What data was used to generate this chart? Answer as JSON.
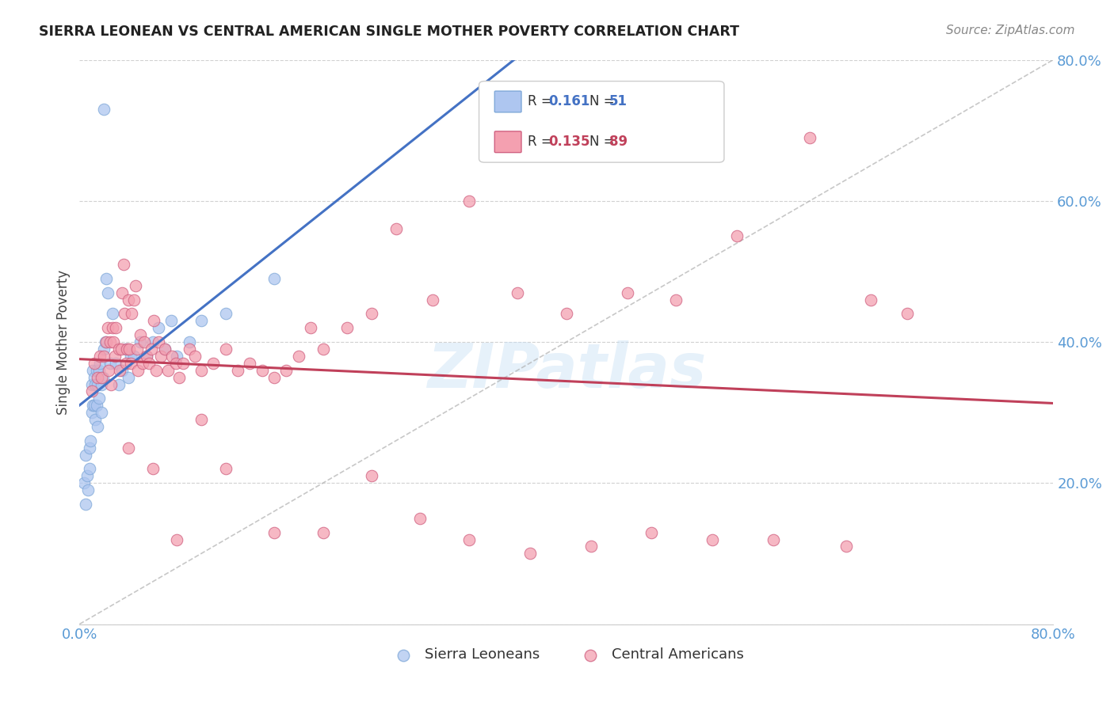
{
  "title": "SIERRA LEONEAN VS CENTRAL AMERICAN SINGLE MOTHER POVERTY CORRELATION CHART",
  "source": "Source: ZipAtlas.com",
  "ylabel": "Single Mother Poverty",
  "xlim": [
    0.0,
    0.8
  ],
  "ylim": [
    0.0,
    0.8
  ],
  "ytick_positions": [
    0.0,
    0.2,
    0.4,
    0.6,
    0.8
  ],
  "ytick_labels": [
    "",
    "20.0%",
    "40.0%",
    "60.0%",
    "80.0%"
  ],
  "xtick_positions": [
    0.0,
    0.1,
    0.2,
    0.3,
    0.4,
    0.5,
    0.6,
    0.7,
    0.8
  ],
  "xtick_labels": [
    "0.0%",
    "",
    "",
    "",
    "",
    "",
    "",
    "",
    "80.0%"
  ],
  "watermark": "ZIPatlas",
  "sierra_R": 0.161,
  "sierra_N": 51,
  "central_R": 0.135,
  "central_N": 89,
  "sierra_x": [
    0.004,
    0.005,
    0.005,
    0.006,
    0.007,
    0.008,
    0.008,
    0.009,
    0.01,
    0.01,
    0.011,
    0.011,
    0.012,
    0.012,
    0.013,
    0.013,
    0.014,
    0.014,
    0.015,
    0.015,
    0.016,
    0.016,
    0.017,
    0.018,
    0.018,
    0.019,
    0.02,
    0.021,
    0.022,
    0.023,
    0.025,
    0.027,
    0.03,
    0.032,
    0.035,
    0.038,
    0.04,
    0.042,
    0.045,
    0.05,
    0.055,
    0.06,
    0.065,
    0.07,
    0.075,
    0.08,
    0.09,
    0.1,
    0.12,
    0.16,
    0.02
  ],
  "sierra_y": [
    0.2,
    0.17,
    0.24,
    0.21,
    0.19,
    0.25,
    0.22,
    0.26,
    0.3,
    0.34,
    0.31,
    0.36,
    0.31,
    0.35,
    0.29,
    0.34,
    0.31,
    0.36,
    0.28,
    0.34,
    0.32,
    0.36,
    0.37,
    0.3,
    0.34,
    0.35,
    0.39,
    0.4,
    0.49,
    0.47,
    0.37,
    0.44,
    0.37,
    0.34,
    0.36,
    0.39,
    0.35,
    0.38,
    0.38,
    0.4,
    0.38,
    0.4,
    0.42,
    0.39,
    0.43,
    0.38,
    0.4,
    0.43,
    0.44,
    0.49,
    0.73
  ],
  "central_x": [
    0.01,
    0.012,
    0.015,
    0.017,
    0.018,
    0.02,
    0.022,
    0.023,
    0.024,
    0.025,
    0.026,
    0.027,
    0.028,
    0.029,
    0.03,
    0.032,
    0.033,
    0.034,
    0.035,
    0.036,
    0.037,
    0.038,
    0.039,
    0.04,
    0.041,
    0.042,
    0.043,
    0.045,
    0.046,
    0.047,
    0.048,
    0.05,
    0.052,
    0.053,
    0.055,
    0.057,
    0.059,
    0.061,
    0.063,
    0.065,
    0.067,
    0.07,
    0.073,
    0.076,
    0.079,
    0.082,
    0.085,
    0.09,
    0.095,
    0.1,
    0.11,
    0.12,
    0.13,
    0.14,
    0.15,
    0.16,
    0.17,
    0.18,
    0.19,
    0.2,
    0.22,
    0.24,
    0.26,
    0.29,
    0.32,
    0.36,
    0.4,
    0.45,
    0.49,
    0.54,
    0.6,
    0.65,
    0.04,
    0.06,
    0.08,
    0.1,
    0.12,
    0.16,
    0.2,
    0.24,
    0.28,
    0.32,
    0.37,
    0.42,
    0.47,
    0.52,
    0.57,
    0.63,
    0.68
  ],
  "central_y": [
    0.33,
    0.37,
    0.35,
    0.38,
    0.35,
    0.38,
    0.4,
    0.42,
    0.36,
    0.4,
    0.34,
    0.42,
    0.4,
    0.38,
    0.42,
    0.39,
    0.36,
    0.39,
    0.47,
    0.51,
    0.44,
    0.37,
    0.39,
    0.46,
    0.39,
    0.37,
    0.44,
    0.46,
    0.48,
    0.39,
    0.36,
    0.41,
    0.37,
    0.4,
    0.38,
    0.37,
    0.39,
    0.43,
    0.36,
    0.4,
    0.38,
    0.39,
    0.36,
    0.38,
    0.37,
    0.35,
    0.37,
    0.39,
    0.38,
    0.36,
    0.37,
    0.39,
    0.36,
    0.37,
    0.36,
    0.35,
    0.36,
    0.38,
    0.42,
    0.39,
    0.42,
    0.44,
    0.56,
    0.46,
    0.6,
    0.47,
    0.44,
    0.47,
    0.46,
    0.55,
    0.69,
    0.46,
    0.25,
    0.22,
    0.12,
    0.29,
    0.22,
    0.13,
    0.13,
    0.21,
    0.15,
    0.12,
    0.1,
    0.11,
    0.13,
    0.12,
    0.12,
    0.11,
    0.44
  ],
  "bg_color": "#ffffff",
  "grid_color": "#cccccc",
  "tick_color": "#5b9bd5",
  "sierra_dot_color": "#aec6f0",
  "sierra_dot_edge": "#7fa8d8",
  "central_dot_color": "#f4a0b0",
  "central_dot_edge": "#d06080",
  "sierra_line_color": "#4472c4",
  "central_line_color": "#c0405a",
  "dashed_line_color": "#b0b0b0",
  "title_color": "#222222",
  "source_color": "#888888",
  "ylabel_color": "#444444"
}
